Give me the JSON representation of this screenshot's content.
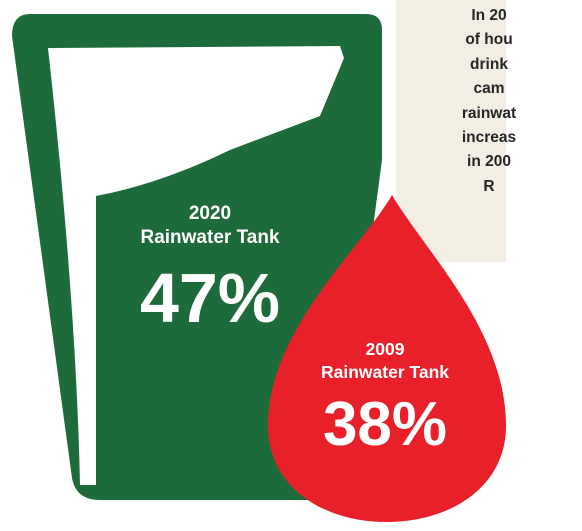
{
  "note": {
    "text": "In 20\nof hou\ndrink\ncam\nrainwat\nincreas\nin 200\nR"
  },
  "glass": {
    "year": "2020",
    "label": "Rainwater Tank",
    "value": "47%",
    "color": "#1d6b3a",
    "icon": "water-glass-icon"
  },
  "drop": {
    "year": "2009",
    "label": "Rainwater Tank",
    "value": "38%",
    "color": "#e8202a",
    "icon": "water-drop-icon"
  },
  "colors": {
    "background": "#ffffff",
    "note_panel": "#f2eee4",
    "text_on_shape": "#ffffff"
  }
}
